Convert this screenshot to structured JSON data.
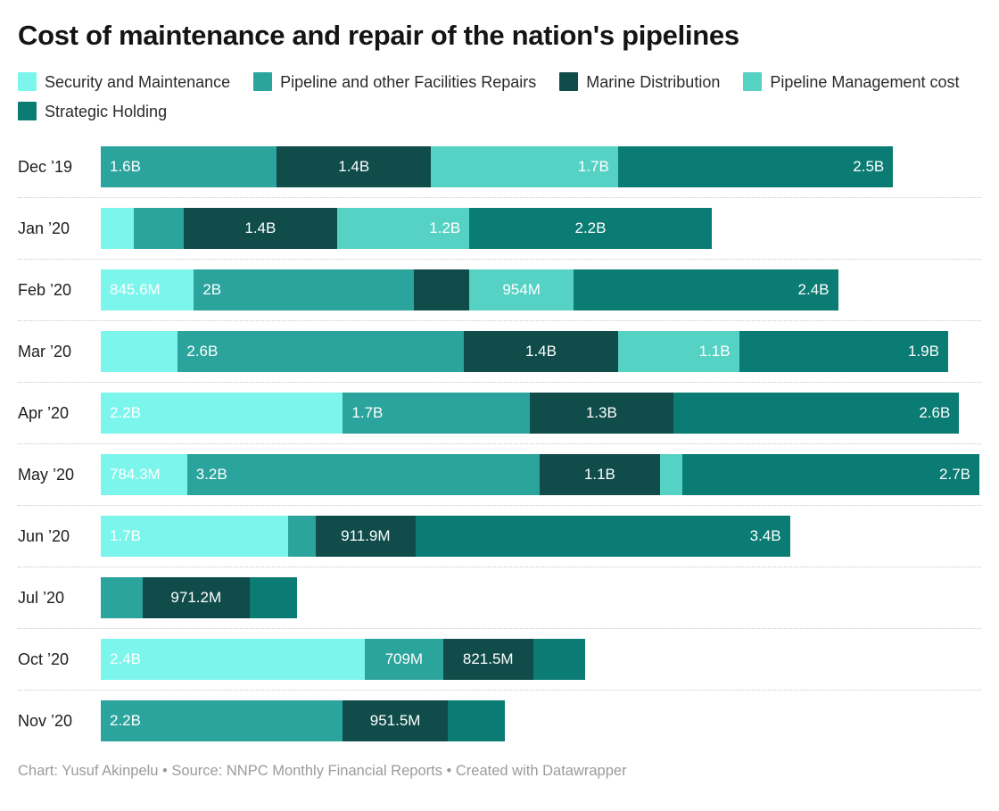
{
  "title": "Cost of maintenance and repair of the nation's pipelines",
  "footer": "Chart: Yusuf Akinpelu • Source: NNPC Monthly Financial Reports • Created with Datawrapper",
  "chart_data": {
    "type": "bar",
    "stacked": true,
    "horizontal": true,
    "value_suffix_legend": "B = billions, M = millions",
    "axis_max_billions": 8,
    "grid": false,
    "legend_position": "top",
    "series": [
      {
        "key": "security",
        "name": "Security and Maintenance",
        "color": "#7CF6EC"
      },
      {
        "key": "repairs",
        "name": "Pipeline and other Facilities Repairs",
        "color": "#2AA49C"
      },
      {
        "key": "marine",
        "name": "Marine Distribution",
        "color": "#0F4C4A"
      },
      {
        "key": "mgmt",
        "name": "Pipeline Management cost",
        "color": "#56D2C5"
      },
      {
        "key": "strategic",
        "name": "Strategic Holding",
        "color": "#0A7C73"
      }
    ],
    "rows": [
      {
        "category": "Dec ’19",
        "segments": [
          {
            "series": "repairs",
            "value": 1.6,
            "label": "1.6B",
            "align": "left"
          },
          {
            "series": "marine",
            "value": 1.4,
            "label": "1.4B",
            "align": "center"
          },
          {
            "series": "mgmt",
            "value": 1.7,
            "label": "1.7B",
            "align": "right"
          },
          {
            "series": "strategic",
            "value": 2.5,
            "label": "2.5B",
            "align": "right"
          }
        ]
      },
      {
        "category": "Jan ’20",
        "segments": [
          {
            "series": "security",
            "value": 0.3,
            "label": "",
            "align": null
          },
          {
            "series": "repairs",
            "value": 0.45,
            "label": "",
            "align": null
          },
          {
            "series": "marine",
            "value": 1.4,
            "label": "1.4B",
            "align": "center"
          },
          {
            "series": "mgmt",
            "value": 1.2,
            "label": "1.2B",
            "align": "right"
          },
          {
            "series": "strategic",
            "value": 2.2,
            "label": "2.2B",
            "align": "center"
          }
        ]
      },
      {
        "category": "Feb ’20",
        "segments": [
          {
            "series": "security",
            "value": 0.8456,
            "label": "845.6M",
            "align": "left"
          },
          {
            "series": "repairs",
            "value": 2.0,
            "label": "2B",
            "align": "left"
          },
          {
            "series": "marine",
            "value": 0.5,
            "label": "",
            "align": null
          },
          {
            "series": "mgmt",
            "value": 0.954,
            "label": "954M",
            "align": "center"
          },
          {
            "series": "strategic",
            "value": 2.4,
            "label": "2.4B",
            "align": "right"
          }
        ]
      },
      {
        "category": "Mar ’20",
        "segments": [
          {
            "series": "security",
            "value": 0.7,
            "label": "",
            "align": null
          },
          {
            "series": "repairs",
            "value": 2.6,
            "label": "2.6B",
            "align": "left"
          },
          {
            "series": "marine",
            "value": 1.4,
            "label": "1.4B",
            "align": "center"
          },
          {
            "series": "mgmt",
            "value": 1.1,
            "label": "1.1B",
            "align": "right"
          },
          {
            "series": "strategic",
            "value": 1.9,
            "label": "1.9B",
            "align": "right"
          }
        ]
      },
      {
        "category": "Apr ’20",
        "segments": [
          {
            "series": "security",
            "value": 2.2,
            "label": "2.2B",
            "align": "left"
          },
          {
            "series": "repairs",
            "value": 1.7,
            "label": "1.7B",
            "align": "left"
          },
          {
            "series": "marine",
            "value": 1.3,
            "label": "1.3B",
            "align": "center"
          },
          {
            "series": "strategic",
            "value": 2.6,
            "label": "2.6B",
            "align": "right"
          }
        ]
      },
      {
        "category": "May ’20",
        "segments": [
          {
            "series": "security",
            "value": 0.7843,
            "label": "784.3M",
            "align": "left"
          },
          {
            "series": "repairs",
            "value": 3.2,
            "label": "3.2B",
            "align": "left"
          },
          {
            "series": "marine",
            "value": 1.1,
            "label": "1.1B",
            "align": "center"
          },
          {
            "series": "mgmt",
            "value": 0.2,
            "label": "",
            "align": null
          },
          {
            "series": "strategic",
            "value": 2.7,
            "label": "2.7B",
            "align": "right"
          }
        ]
      },
      {
        "category": "Jun ’20",
        "segments": [
          {
            "series": "security",
            "value": 1.7,
            "label": "1.7B",
            "align": "left"
          },
          {
            "series": "repairs",
            "value": 0.25,
            "label": "",
            "align": null
          },
          {
            "series": "marine",
            "value": 0.9119,
            "label": "911.9M",
            "align": "center"
          },
          {
            "series": "strategic",
            "value": 3.4,
            "label": "3.4B",
            "align": "right"
          }
        ]
      },
      {
        "category": "Jul ’20",
        "segments": [
          {
            "series": "repairs",
            "value": 0.38,
            "label": "",
            "align": null
          },
          {
            "series": "marine",
            "value": 0.9712,
            "label": "971.2M",
            "align": "center"
          },
          {
            "series": "strategic",
            "value": 0.43,
            "label": "",
            "align": null
          }
        ]
      },
      {
        "category": "Oct ’20",
        "segments": [
          {
            "series": "security",
            "value": 2.4,
            "label": "2.4B",
            "align": "left"
          },
          {
            "series": "repairs",
            "value": 0.709,
            "label": "709M",
            "align": "center"
          },
          {
            "series": "marine",
            "value": 0.8215,
            "label": "821.5M",
            "align": "center"
          },
          {
            "series": "strategic",
            "value": 0.47,
            "label": "",
            "align": null
          }
        ]
      },
      {
        "category": "Nov ’20",
        "segments": [
          {
            "series": "repairs",
            "value": 2.2,
            "label": "2.2B",
            "align": "left"
          },
          {
            "series": "marine",
            "value": 0.9515,
            "label": "951.5M",
            "align": "center"
          },
          {
            "series": "strategic",
            "value": 0.52,
            "label": "",
            "align": null
          }
        ]
      }
    ]
  }
}
